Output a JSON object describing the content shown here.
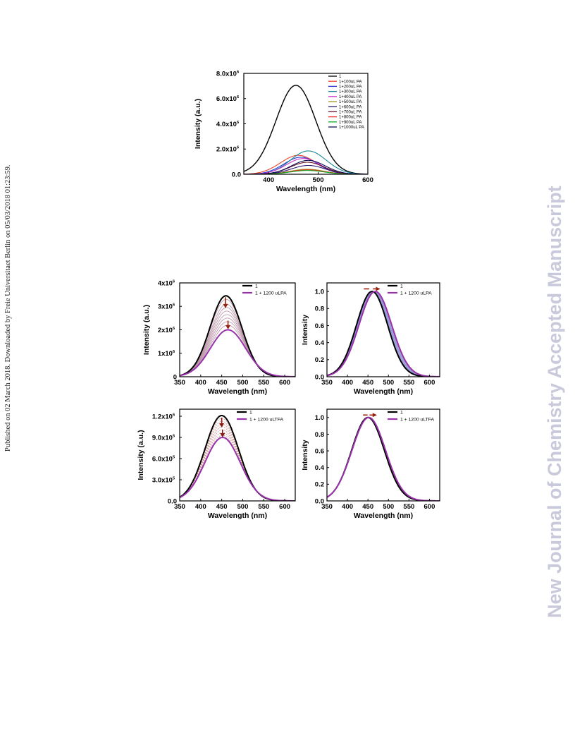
{
  "sidebar_text": "Published on 02 March 2018. Downloaded by Freie Universitaet Berlin on 05/03/2018 01:23:59.",
  "watermark": "New Journal of Chemistry Accepted Manuscript",
  "chart_data": [
    {
      "type": "line",
      "xlabel": "Wavelength (nm)",
      "ylabel": "Intensity (a.u.)",
      "xlim": [
        350,
        600
      ],
      "ylim": [
        0,
        8000000
      ],
      "xticks": [
        400,
        500,
        600
      ],
      "yticks": [
        {
          "value": 0,
          "label": "0.0"
        },
        {
          "value": 2000000,
          "label": "2.0x10",
          "sup": "6"
        },
        {
          "value": 4000000,
          "label": "4.0x10",
          "sup": "6"
        },
        {
          "value": 6000000,
          "label": "6.0x10",
          "sup": "6"
        },
        {
          "value": 8000000,
          "label": "8.0x10",
          "sup": "6"
        }
      ],
      "legend_position": "top-right",
      "series": [
        {
          "name": "1",
          "color": "#000000",
          "peak_x": 455,
          "peak_y": 7050000,
          "width": 40
        },
        {
          "name": "1+100uL PA",
          "color": "#e8452c",
          "peak_x": 460,
          "peak_y": 1500000,
          "width": 36
        },
        {
          "name": "1+200uL PA",
          "color": "#2233cc",
          "peak_x": 465,
          "peak_y": 1350000,
          "width": 34
        },
        {
          "name": "1+300uL PA",
          "color": "#1a8a9a",
          "peak_x": 480,
          "peak_y": 1850000,
          "width": 36
        },
        {
          "name": "1+400uL PA",
          "color": "#cc33cc",
          "peak_x": 470,
          "peak_y": 1250000,
          "width": 34
        },
        {
          "name": "1+500uL PA",
          "color": "#999922",
          "peak_x": 478,
          "peak_y": 400000,
          "width": 34
        },
        {
          "name": "1+600uL PA",
          "color": "#2a1a6a",
          "peak_x": 480,
          "peak_y": 700000,
          "width": 34
        },
        {
          "name": "1+700uL PA",
          "color": "#6a1030",
          "peak_x": 478,
          "peak_y": 950000,
          "width": 34
        },
        {
          "name": "1+800uL PA",
          "color": "#ee2222",
          "peak_x": 478,
          "peak_y": 350000,
          "width": 34
        },
        {
          "name": "1+900uL PA",
          "color": "#11aa22",
          "peak_x": 478,
          "peak_y": 300000,
          "width": 34
        },
        {
          "name": "1+1000uL PA",
          "color": "#111155",
          "peak_x": 480,
          "peak_y": 1100000,
          "width": 34
        }
      ]
    },
    {
      "type": "line",
      "xlabel": "Wavelength (nm)",
      "ylabel": "Intensity (a.u.)",
      "xlim": [
        350,
        625
      ],
      "ylim": [
        0,
        4000000
      ],
      "xticks": [
        350,
        400,
        450,
        500,
        550,
        600
      ],
      "yticks": [
        {
          "value": 0,
          "label": "0"
        },
        {
          "value": 1000000,
          "label": "1x10",
          "sup": "6"
        },
        {
          "value": 2000000,
          "label": "2x10",
          "sup": "6"
        },
        {
          "value": 3000000,
          "label": "3x10",
          "sup": "6"
        },
        {
          "value": 4000000,
          "label": "4x10",
          "sup": "6"
        }
      ],
      "legend_position": "top-right",
      "series": [
        {
          "name": "1",
          "color": "#000000",
          "peak_x": 460,
          "peak_y": 3450000,
          "width": 38
        },
        {
          "name": "1 + 1200 uLPA",
          "color": "#9933aa",
          "peak_x": 465,
          "peak_y": 2000000,
          "width": 42
        }
      ],
      "intermediate": {
        "color": "#b48aa0",
        "peaks": [
          3300000,
          3100000,
          2950000,
          2800000,
          2650000,
          2500000,
          2350000,
          2200000
        ]
      }
    },
    {
      "type": "line",
      "xlabel": "Wavelength (nm)",
      "ylabel": "Intensity",
      "xlim": [
        350,
        625
      ],
      "ylim": [
        0,
        1.1
      ],
      "xticks": [
        350,
        400,
        450,
        500,
        550,
        600
      ],
      "yticks": [
        {
          "value": 0,
          "label": "0.0"
        },
        {
          "value": 0.2,
          "label": "0.2"
        },
        {
          "value": 0.4,
          "label": "0.4"
        },
        {
          "value": 0.6,
          "label": "0.6"
        },
        {
          "value": 0.8,
          "label": "0.8"
        },
        {
          "value": 1.0,
          "label": "1.0"
        }
      ],
      "legend_position": "top-right",
      "series": [
        {
          "name": "1",
          "color": "#000000",
          "peak_x": 460,
          "peak_y": 1.0,
          "width": 38
        },
        {
          "name": "1 + 1200 uLPA",
          "color": "#9933aa",
          "peak_x": 468,
          "peak_y": 1.0,
          "width": 40
        }
      ],
      "intermediate": {
        "color": "#8a8ad0",
        "peaks": [
          1,
          1,
          1,
          1,
          1,
          1
        ]
      }
    },
    {
      "type": "line",
      "xlabel": "Wavelength (nm)",
      "ylabel": "Intensity (a.u.)",
      "xlim": [
        350,
        625
      ],
      "ylim": [
        0,
        1300000
      ],
      "xticks": [
        350,
        400,
        450,
        500,
        550,
        600
      ],
      "yticks": [
        {
          "value": 0,
          "label": "0.0"
        },
        {
          "value": 300000,
          "label": "3.0x10",
          "sup": "5"
        },
        {
          "value": 600000,
          "label": "6.0x10",
          "sup": "5"
        },
        {
          "value": 900000,
          "label": "9.0x10",
          "sup": "5"
        },
        {
          "value": 1200000,
          "label": "1.2x10",
          "sup": "6"
        }
      ],
      "legend_position": "top-right",
      "series": [
        {
          "name": "1",
          "color": "#000000",
          "peak_x": 450,
          "peak_y": 1210000,
          "width": 40
        },
        {
          "name": "1 + 1200 uLTFA",
          "color": "#9933aa",
          "peak_x": 452,
          "peak_y": 900000,
          "width": 42
        }
      ],
      "intermediate": {
        "color": "#c88a8a",
        "peaks": [
          1170000,
          1130000,
          1090000,
          1050000,
          1010000,
          970000,
          930000
        ]
      }
    },
    {
      "type": "line",
      "xlabel": "Wavelength (nm)",
      "ylabel": "Intensity",
      "xlim": [
        350,
        625
      ],
      "ylim": [
        0,
        1.1
      ],
      "xticks": [
        350,
        400,
        450,
        500,
        550,
        600
      ],
      "yticks": [
        {
          "value": 0,
          "label": "0.0"
        },
        {
          "value": 0.2,
          "label": "0.2"
        },
        {
          "value": 0.4,
          "label": "0.4"
        },
        {
          "value": 0.6,
          "label": "0.6"
        },
        {
          "value": 0.8,
          "label": "0.8"
        },
        {
          "value": 1.0,
          "label": "1.0"
        }
      ],
      "legend_position": "top-right",
      "series": [
        {
          "name": "1",
          "color": "#000000",
          "peak_x": 450,
          "peak_y": 1.0,
          "width": 40
        },
        {
          "name": "1 + 1200 uLTFA",
          "color": "#9933aa",
          "peak_x": 452,
          "peak_y": 1.0,
          "width": 41
        }
      ],
      "intermediate": {
        "color": "#aa6677",
        "peaks": [
          1,
          1,
          1,
          1
        ]
      }
    }
  ]
}
